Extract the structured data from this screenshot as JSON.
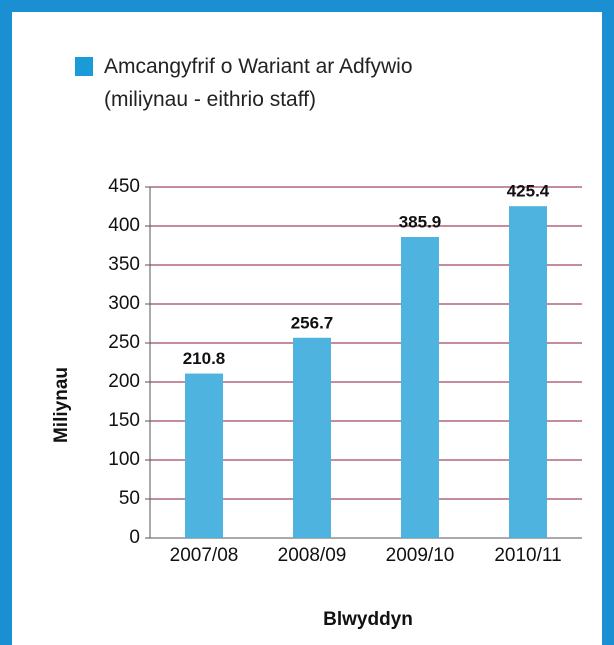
{
  "chart_data": {
    "type": "bar",
    "categories": [
      "2007/08",
      "2008/09",
      "2009/10",
      "2010/11"
    ],
    "series": [
      {
        "name": "Amcangyfrif o Wariant ar Adfywio (miliynau - eithrio staff)",
        "color": "#4fb3e0",
        "values": [
          210.8,
          256.7,
          385.9,
          425.4
        ]
      }
    ],
    "legend_color": "#1a9ad6",
    "ylabel": "Miliynau",
    "xlabel": "Blwyddyn",
    "ylim": [
      0,
      450
    ],
    "yticks": [
      0,
      50,
      100,
      150,
      200,
      250,
      300,
      350,
      400,
      450
    ],
    "grid": true,
    "grid_color": "#8b1a3a"
  }
}
